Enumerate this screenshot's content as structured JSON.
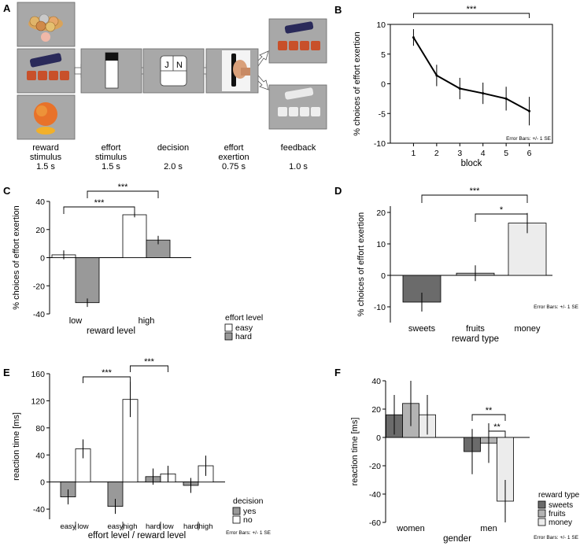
{
  "panel_labels": {
    "A": "A",
    "B": "B",
    "C": "C",
    "D": "D",
    "E": "E",
    "F": "F"
  },
  "paradigm": {
    "stages": [
      {
        "name": "reward\nstimulus",
        "time": "1.5 s"
      },
      {
        "name": "effort\nstimulus",
        "time": "1.5 s"
      },
      {
        "name": "decision",
        "time": "2.0 s"
      },
      {
        "name": "effort\nexertion",
        "time": "0.75 s"
      },
      {
        "name": "feedback",
        "time": "1.0 s"
      }
    ],
    "decision_keys": [
      "J",
      "N"
    ]
  },
  "chart_data": [
    {
      "id": "B",
      "type": "line",
      "xlabel": "block",
      "ylabel": "% choices of effort exertion",
      "x": [
        1,
        2,
        3,
        4,
        5,
        6
      ],
      "values": [
        7.8,
        1.4,
        -0.8,
        -1.6,
        -2.5,
        -4.6
      ],
      "errors": [
        1.4,
        1.8,
        1.8,
        1.8,
        2.0,
        2.4
      ],
      "xlim": [
        0,
        7
      ],
      "ylim": [
        -10,
        10
      ],
      "yticks": [
        -10,
        -5,
        0,
        5,
        10
      ],
      "xticks": [
        1,
        2,
        3,
        4,
        5,
        6
      ],
      "sig": [
        {
          "from": 1,
          "to": 6,
          "label": "***"
        }
      ],
      "note": "Error Bars: +/- 1 SE"
    },
    {
      "id": "C",
      "type": "bar",
      "xlabel": "reward level",
      "ylabel": "% choices of effort exertion",
      "categories": [
        "low",
        "high"
      ],
      "series": [
        {
          "name": "easy",
          "color": "#ffffff",
          "values": [
            2.0,
            30.5
          ],
          "errors": [
            3.2,
            1.8
          ]
        },
        {
          "name": "hard",
          "color": "#999999",
          "values": [
            -32.0,
            12.5
          ],
          "errors": [
            3.0,
            3.0
          ]
        }
      ],
      "ylim": [
        -40,
        40
      ],
      "yticks": [
        -40,
        -20,
        0,
        20,
        40
      ],
      "legend_title": "effort level",
      "sig": [
        {
          "label": "***"
        },
        {
          "label": "***"
        }
      ]
    },
    {
      "id": "D",
      "type": "bar",
      "xlabel": "reward type",
      "ylabel": "% choices of effort exertion",
      "categories": [
        "sweets",
        "fruits",
        "money"
      ],
      "values": [
        -8.5,
        0.7,
        16.6
      ],
      "errors": [
        3.0,
        2.5,
        3.2
      ],
      "colors": [
        "#6b6b6b",
        "#b3b3b3",
        "#ececec"
      ],
      "ylim": [
        -15,
        22
      ],
      "yticks": [
        -10,
        0,
        10,
        20
      ],
      "sig": [
        {
          "label": "***"
        },
        {
          "label": "*"
        }
      ],
      "note": "Error Bars: +/- 1 SE"
    },
    {
      "id": "E",
      "type": "bar",
      "xlabel": "effort level / reward level",
      "ylabel": "reaction time [ms]",
      "groups": [
        {
          "effort": "easy",
          "reward": "low"
        },
        {
          "effort": "easy",
          "reward": "high"
        },
        {
          "effort": "hard",
          "reward": "low"
        },
        {
          "effort": "hard",
          "reward": "high"
        }
      ],
      "series": [
        {
          "name": "yes",
          "color": "#999999",
          "values": [
            -22,
            -36,
            8,
            -5
          ],
          "errors": [
            11,
            11,
            12,
            11
          ]
        },
        {
          "name": "no",
          "color": "#ffffff",
          "values": [
            49,
            122,
            12,
            24
          ],
          "errors": [
            14,
            26,
            12,
            15
          ]
        }
      ],
      "ylim": [
        -55,
        160
      ],
      "yticks": [
        -40,
        0,
        40,
        80,
        120,
        160
      ],
      "legend_title": "decision",
      "sig": [
        {
          "label": "***"
        },
        {
          "label": "***"
        }
      ],
      "note": "Error Bars: +/- 1 SE"
    },
    {
      "id": "F",
      "type": "bar",
      "xlabel": "gender",
      "ylabel": "reaction time [ms]",
      "categories": [
        "women",
        "men"
      ],
      "series": [
        {
          "name": "sweets",
          "color": "#6b6b6b",
          "values": [
            16,
            -10
          ],
          "errors": [
            14,
            16
          ]
        },
        {
          "name": "fruits",
          "color": "#b3b3b3",
          "values": [
            24,
            -4
          ],
          "errors": [
            16,
            14
          ]
        },
        {
          "name": "money",
          "color": "#ececec",
          "values": [
            16,
            -45
          ],
          "errors": [
            14,
            15
          ]
        }
      ],
      "ylim": [
        -60,
        40
      ],
      "yticks": [
        -60,
        -40,
        -20,
        0,
        20,
        40
      ],
      "legend_title": "reward type",
      "sig": [
        {
          "label": "**"
        },
        {
          "label": "**"
        }
      ],
      "note": "Error Bars: +/- 1 SE"
    }
  ]
}
